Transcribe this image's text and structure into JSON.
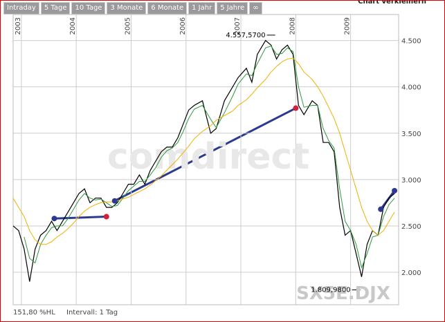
{
  "ui": {
    "tabs": [
      "Intraday",
      "5 Tage",
      "10 Tage",
      "3 Monate",
      "6 Monate",
      "1 Jahr",
      "5 Jahre",
      "∞"
    ],
    "shrink": "Chart verkleinern",
    "footer_left": "151,80 %HL",
    "footer_interval": "Intervall: 1 Tag"
  },
  "chart_data": {
    "type": "line",
    "watermark": "comdirect",
    "symbol": "SX5E.DJX",
    "xlim": [
      2002.85,
      2009.875
    ],
    "xticks": [
      2003,
      2004,
      2005,
      2006,
      2007,
      2008,
      2009
    ],
    "ylim": [
      1650,
      4780
    ],
    "yticks": [
      {
        "value": 2000,
        "label": "2.000"
      },
      {
        "value": 2500,
        "label": "2.500"
      },
      {
        "value": 3000,
        "label": "3.000"
      },
      {
        "value": 3500,
        "label": "3.500"
      },
      {
        "value": 4000,
        "label": "4.000"
      },
      {
        "value": 4500,
        "label": "4.500"
      }
    ],
    "grid": true,
    "x": [
      2002.85,
      2002.95,
      2003.05,
      2003.15,
      2003.25,
      2003.35,
      2003.45,
      2003.55,
      2003.65,
      2003.75,
      2003.85,
      2003.95,
      2004.05,
      2004.15,
      2004.25,
      2004.35,
      2004.45,
      2004.55,
      2004.65,
      2004.75,
      2004.85,
      2004.95,
      2005.05,
      2005.15,
      2005.25,
      2005.35,
      2005.45,
      2005.55,
      2005.65,
      2005.75,
      2005.85,
      2005.95,
      2006.05,
      2006.15,
      2006.3,
      2006.45,
      2006.55,
      2006.7,
      2006.85,
      2006.95,
      2007.1,
      2007.2,
      2007.3,
      2007.45,
      2007.55,
      2007.65,
      2007.75,
      2007.85,
      2007.95,
      2008.05,
      2008.15,
      2008.3,
      2008.4,
      2008.5,
      2008.6,
      2008.7,
      2008.8,
      2008.9,
      2009.0,
      2009.1,
      2009.2,
      2009.3,
      2009.4,
      2009.5,
      2009.6,
      2009.7,
      2009.8
    ],
    "series": [
      {
        "color": "#000000",
        "width": 1.2,
        "values": [
          2500,
          2450,
          2250,
          1900,
          2250,
          2400,
          2450,
          2550,
          2450,
          2550,
          2650,
          2750,
          2850,
          2900,
          2750,
          2800,
          2800,
          2700,
          2700,
          2750,
          2850,
          2950,
          2950,
          3050,
          2950,
          3100,
          3200,
          3300,
          3350,
          3350,
          3450,
          3600,
          3750,
          3800,
          3850,
          3500,
          3550,
          3850,
          4000,
          4100,
          4200,
          4050,
          4350,
          4500,
          4450,
          4300,
          4400,
          4450,
          4350,
          3800,
          3700,
          3850,
          3800,
          3400,
          3400,
          3300,
          2700,
          2400,
          2450,
          2200,
          1950,
          2300,
          2450,
          2400,
          2700,
          2800,
          2850
        ]
      },
      {
        "color": "#2a9a3a",
        "width": 1,
        "values": [
          null,
          null,
          2380,
          2150,
          2100,
          2300,
          2400,
          2480,
          2500,
          2500,
          2580,
          2680,
          2780,
          2850,
          2800,
          2780,
          2790,
          2750,
          2710,
          2720,
          2800,
          2880,
          2930,
          2980,
          2980,
          3050,
          3130,
          3240,
          3310,
          3340,
          3400,
          3520,
          3660,
          3760,
          3800,
          3650,
          3560,
          3720,
          3900,
          4030,
          4140,
          4120,
          4250,
          4420,
          4440,
          4350,
          4360,
          4420,
          4380,
          4000,
          3780,
          3800,
          3800,
          3550,
          3420,
          3340,
          2900,
          2550,
          2450,
          2300,
          2050,
          2200,
          2380,
          2400,
          2600,
          2730,
          2800
        ]
      },
      {
        "color": "#f0b000",
        "width": 1,
        "values": [
          2800,
          2700,
          2600,
          2450,
          2350,
          2300,
          2300,
          2330,
          2380,
          2420,
          2470,
          2530,
          2600,
          2660,
          2700,
          2730,
          2750,
          2760,
          2760,
          2770,
          2790,
          2810,
          2840,
          2870,
          2900,
          2940,
          2990,
          3040,
          3100,
          3160,
          3220,
          3290,
          3360,
          3440,
          3520,
          3580,
          3640,
          3690,
          3740,
          3800,
          3860,
          3920,
          3990,
          4080,
          4160,
          4220,
          4270,
          4300,
          4310,
          4250,
          4160,
          4080,
          4000,
          3900,
          3780,
          3660,
          3500,
          3300,
          3100,
          2900,
          2700,
          2550,
          2450,
          2400,
          2450,
          2550,
          2650
        ]
      }
    ],
    "trendlines": [
      {
        "color": "#2b3a8f",
        "x": [
          2003.6,
          2004.55
        ],
        "y": [
          2580,
          2600
        ],
        "end_colors": [
          "#2b3a8f",
          "#d0203a"
        ]
      },
      {
        "color": "#2b3a8f",
        "x": [
          2004.7,
          2008.0
        ],
        "y": [
          2770,
          3770
        ],
        "end_colors": [
          "#2b3a8f",
          "#d0203a"
        ]
      },
      {
        "color": "#2b3a8f",
        "x": [
          2009.55,
          2009.8
        ],
        "y": [
          2680,
          2880
        ],
        "end_colors": [
          "#2b3a8f",
          "#2b3a8f"
        ]
      }
    ],
    "annotations": [
      {
        "label": "4.557,5700",
        "x": 2007.55,
        "y": 4557.57
      },
      {
        "label": "1.809,9800",
        "x": 2009.1,
        "y": 1809.98
      }
    ]
  }
}
